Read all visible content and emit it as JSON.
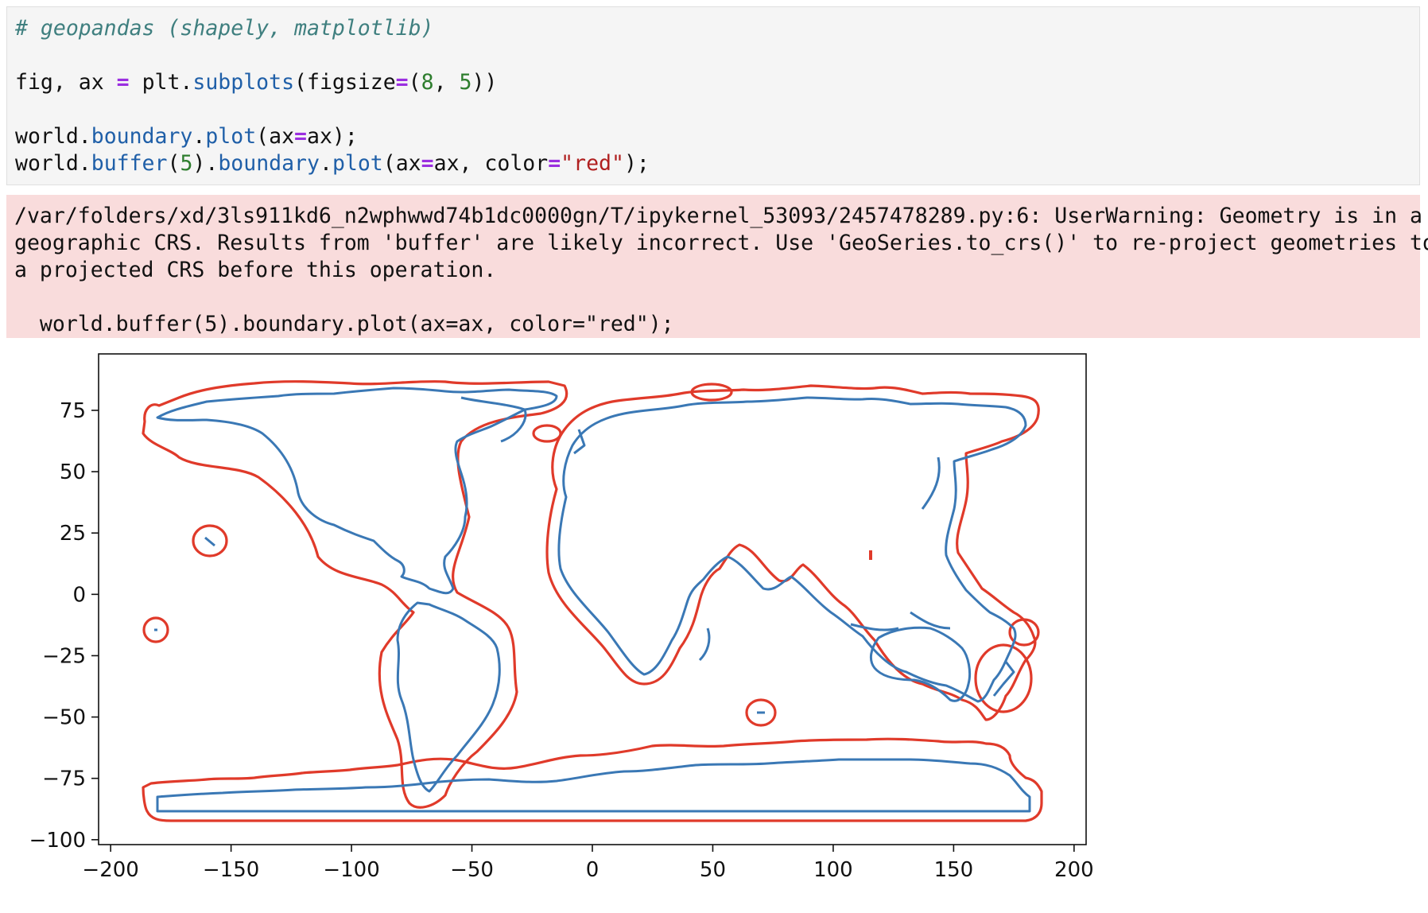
{
  "code": {
    "comment": "# geopandas (shapely, matplotlib)",
    "line2": {
      "t1": "fig, ax ",
      "op": "=",
      "t2": " plt.",
      "fn": "subplots",
      "t3": "(figsize",
      "op2": "=",
      "t4": "(",
      "n1": "8",
      "t5": ", ",
      "n2": "5",
      "t6": "))"
    },
    "line3": {
      "t1": "world.",
      "fn1": "boundary",
      "t2": ".",
      "fn2": "plot",
      "t3": "(ax",
      "op": "=",
      "t4": "ax);"
    },
    "line4": {
      "t1": "world.",
      "fn1": "buffer",
      "t2": "(",
      "n1": "5",
      "t3": ").",
      "fn2": "boundary",
      "t4": ".",
      "fn3": "plot",
      "t5": "(ax",
      "op": "=",
      "t6": "ax, color",
      "op2": "=",
      "str": "\"red\"",
      "t7": ");"
    }
  },
  "warning": {
    "line1": "/var/folders/xd/3ls911kd6_n2wphwwd74b1dc0000gn/T/ipykernel_53093/2457478289.py:6: UserWarning: Geometry is in a",
    "line2": "geographic CRS. Results from 'buffer' are likely incorrect. Use 'GeoSeries.to_crs()' to re-project geometries to",
    "line3": "a projected CRS before this operation.",
    "line4": "  world.buffer(5).boundary.plot(ax=ax, color=\"red\");"
  },
  "chart_data": {
    "type": "map",
    "xlim": [
      -205,
      205
    ],
    "ylim": [
      -102,
      98
    ],
    "x_ticks": [
      -200,
      -150,
      -100,
      -50,
      0,
      50,
      100,
      150,
      200
    ],
    "x_tick_labels": [
      "−200",
      "−150",
      "−100",
      "−50",
      "0",
      "50",
      "100",
      "150",
      "200"
    ],
    "y_ticks": [
      75,
      50,
      25,
      0,
      -25,
      -50,
      -75,
      -100
    ],
    "y_tick_labels": [
      "75",
      "50",
      "25",
      "0",
      "−25",
      "−50",
      "−75",
      "−100"
    ],
    "series": [
      {
        "color": "#3a78b5"
      },
      {
        "color": "#e03a2a"
      }
    ],
    "grid": false
  }
}
